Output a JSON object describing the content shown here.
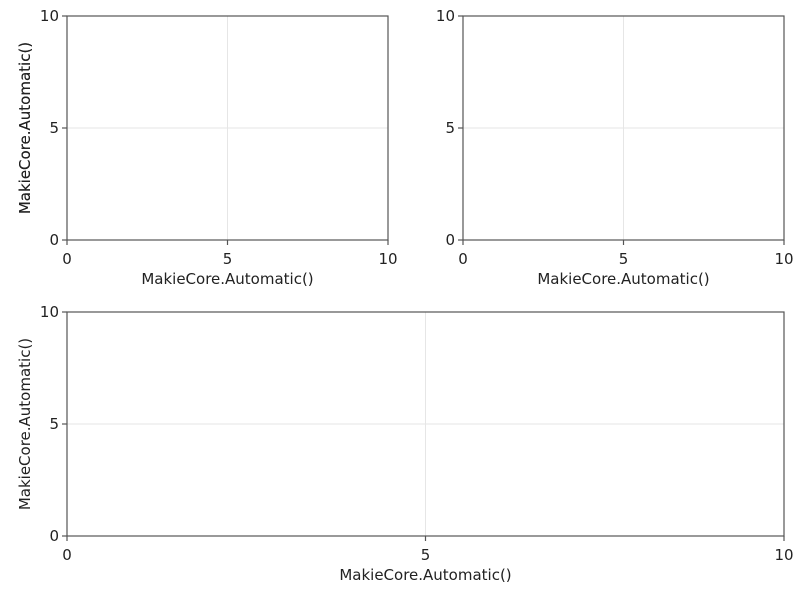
{
  "chart_data": [
    {
      "type": "line",
      "xlabel": "MakieCore.Automatic()",
      "ylabel": "MakieCore.Automatic()",
      "xlim": [
        0,
        10
      ],
      "ylim": [
        0,
        10
      ],
      "xticks": [
        "0",
        "5",
        "10"
      ],
      "yticks": [
        "0",
        "5",
        "10"
      ],
      "grid": true,
      "series": []
    },
    {
      "type": "line",
      "xlabel": "MakieCore.Automatic()",
      "ylabel": "MakieCore.Automatic()",
      "xlim": [
        0,
        10
      ],
      "ylim": [
        0,
        10
      ],
      "xticks": [
        "0",
        "5",
        "10"
      ],
      "yticks": [
        "0",
        "5",
        "10"
      ],
      "grid": true,
      "series": []
    },
    {
      "type": "line",
      "xlabel": "MakieCore.Automatic()",
      "ylabel": "MakieCore.Automatic()",
      "xlim": [
        0,
        10
      ],
      "ylim": [
        0,
        10
      ],
      "xticks": [
        "0",
        "5",
        "10"
      ],
      "yticks": [
        "0",
        "5",
        "10"
      ],
      "grid": true,
      "series": []
    }
  ],
  "colors": {
    "spine": "#555555",
    "grid": "#e6e6e6",
    "text": "#222222"
  }
}
